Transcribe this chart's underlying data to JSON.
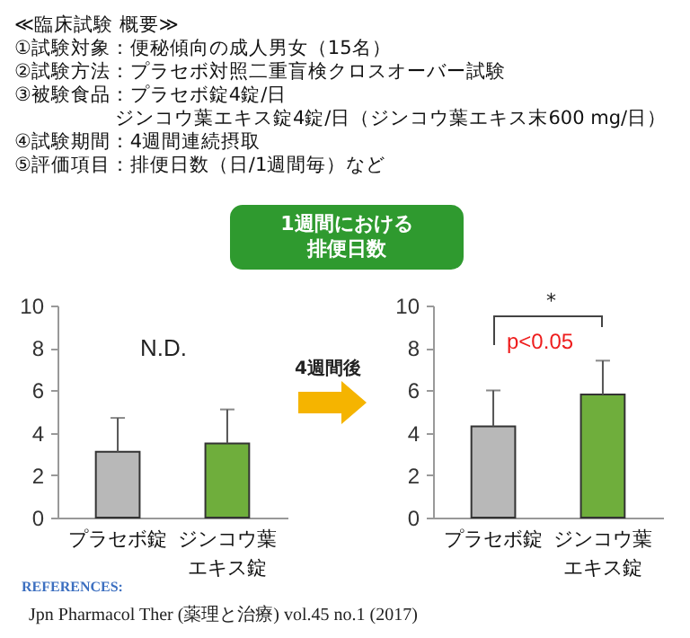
{
  "chart_data": [
    {
      "type": "bar",
      "categories": [
        "プラセボ錠",
        "ジンコウ葉エキス錠"
      ],
      "values": [
        3.1,
        3.5
      ],
      "colors": [
        "#b8b8b8",
        "#6fae3c"
      ],
      "errors": [
        [
          3.1,
          4.7
        ],
        [
          3.5,
          5.1
        ]
      ],
      "ylim": [
        0,
        10
      ],
      "yticks": [
        0,
        2,
        4,
        6,
        8,
        10
      ],
      "grid": false,
      "annotations": [
        "≪臨床試験 概要≫",
        "①試験対象：便秘傾向の成人男女（15名）",
        "②試験方法：プラセボ対照二重盲検クロスオーバー試験",
        "③被験食品：プラセボ錠4錠/日",
        "ジンコウ葉エキス錠4錠/日（ジンコウ葉エキス末600 mg/日）",
        "④試験期間：4週間連続摂取",
        "⑤評価項目：排便日数（日/1週間毎）など",
        "N.D.",
        "4週間後"
      ]
    },
    {
      "type": "bar",
      "title": "1週間における排便日数",
      "categories": [
        "プラセボ錠",
        "ジンコウ葉エキス錠"
      ],
      "values": [
        4.3,
        5.8
      ],
      "colors": [
        "#b8b8b8",
        "#6fae3c"
      ],
      "errors": [
        [
          4.3,
          6.0
        ],
        [
          5.8,
          7.4
        ]
      ],
      "ylim": [
        0,
        10
      ],
      "yticks": [
        0,
        2,
        4,
        6,
        8,
        10
      ],
      "grid": false,
      "annotations": [
        "*",
        "p<0.05",
        "REFERENCES:",
        "Jpn Pharmacol Ther (薬理と治療) vol.45 no.1 (2017)"
      ]
    }
  ]
}
